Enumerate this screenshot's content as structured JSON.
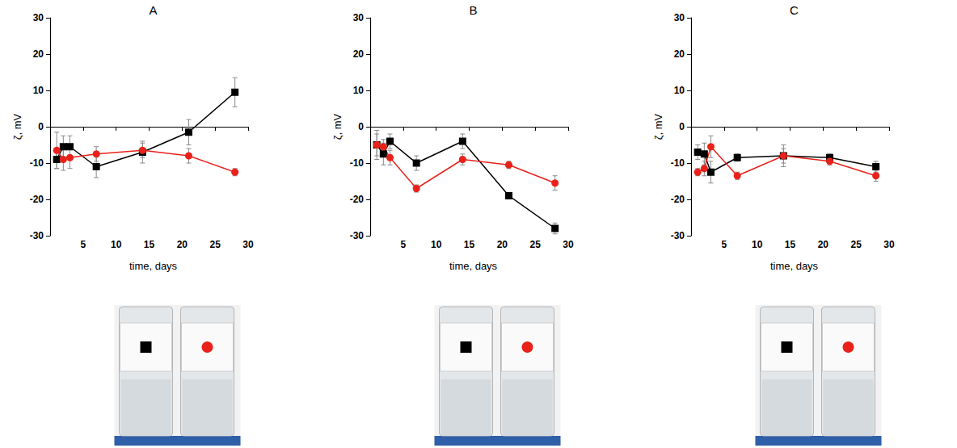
{
  "chart_data": [
    {
      "type": "line",
      "title": "A",
      "xlabel": "time, days",
      "ylabel": "ζ, mV",
      "x": [
        1,
        2,
        3,
        7,
        14,
        21,
        28
      ],
      "xlim": [
        0,
        30
      ],
      "xticks": [
        5,
        10,
        15,
        20,
        25,
        30
      ],
      "ylim": [
        -30,
        30
      ],
      "yticks": [
        -30,
        -20,
        -10,
        0,
        10,
        20,
        30
      ],
      "grid": false,
      "series": [
        {
          "color": "#000000",
          "marker": "square",
          "values": [
            -9,
            -5.5,
            -5.5,
            -11,
            -7,
            -1.5,
            9.5
          ],
          "errors": [
            2.5,
            3,
            3,
            3,
            3,
            3.5,
            4
          ]
        },
        {
          "color": "#e8221a",
          "marker": "circle",
          "values": [
            -6.5,
            -9,
            -8.5,
            -7.5,
            -6.5,
            -8,
            -12.5
          ],
          "errors": [
            5,
            3,
            3,
            2,
            2,
            2,
            1
          ]
        }
      ]
    },
    {
      "type": "line",
      "title": "B",
      "xlabel": "time, days",
      "ylabel": "ζ, mV",
      "x": [
        1,
        2,
        3,
        7,
        14,
        21,
        28
      ],
      "xlim": [
        0,
        30
      ],
      "xticks": [
        5,
        10,
        15,
        20,
        25,
        30
      ],
      "ylim": [
        -30,
        30
      ],
      "yticks": [
        -30,
        -20,
        -10,
        0,
        10,
        20,
        30
      ],
      "grid": false,
      "series": [
        {
          "color": "#000000",
          "marker": "square",
          "values": [
            -5,
            -7.5,
            -4,
            -10,
            -4,
            -19,
            -28
          ],
          "errors": [
            3,
            3,
            2,
            2,
            2,
            0.5,
            1.5
          ]
        },
        {
          "color": "#e8221a",
          "marker": "circle",
          "values": [
            -5,
            -5.5,
            -8.5,
            -17,
            -9,
            -10.5,
            -15.5
          ],
          "errors": [
            4,
            2,
            2,
            1,
            1.5,
            1,
            2
          ]
        }
      ]
    },
    {
      "type": "line",
      "title": "C",
      "xlabel": "time, days",
      "ylabel": "ζ, mV",
      "x": [
        1,
        2,
        3,
        7,
        14,
        21,
        28
      ],
      "xlim": [
        0,
        30
      ],
      "xticks": [
        5,
        10,
        15,
        20,
        25,
        30
      ],
      "ylim": [
        -30,
        30
      ],
      "yticks": [
        -30,
        -20,
        -10,
        0,
        10,
        20,
        30
      ],
      "grid": false,
      "series": [
        {
          "color": "#000000",
          "marker": "square",
          "values": [
            -7,
            -7.5,
            -12.5,
            -8.5,
            -8,
            -8.5,
            -11
          ],
          "errors": [
            2,
            3,
            3,
            1,
            2,
            1,
            1.5
          ]
        },
        {
          "color": "#e8221a",
          "marker": "circle",
          "values": [
            -12.5,
            -11.5,
            -5.5,
            -13.5,
            -8,
            -9.5,
            -13.5
          ],
          "errors": [
            1,
            2,
            3,
            1,
            3,
            1,
            1.5
          ]
        }
      ]
    }
  ]
}
